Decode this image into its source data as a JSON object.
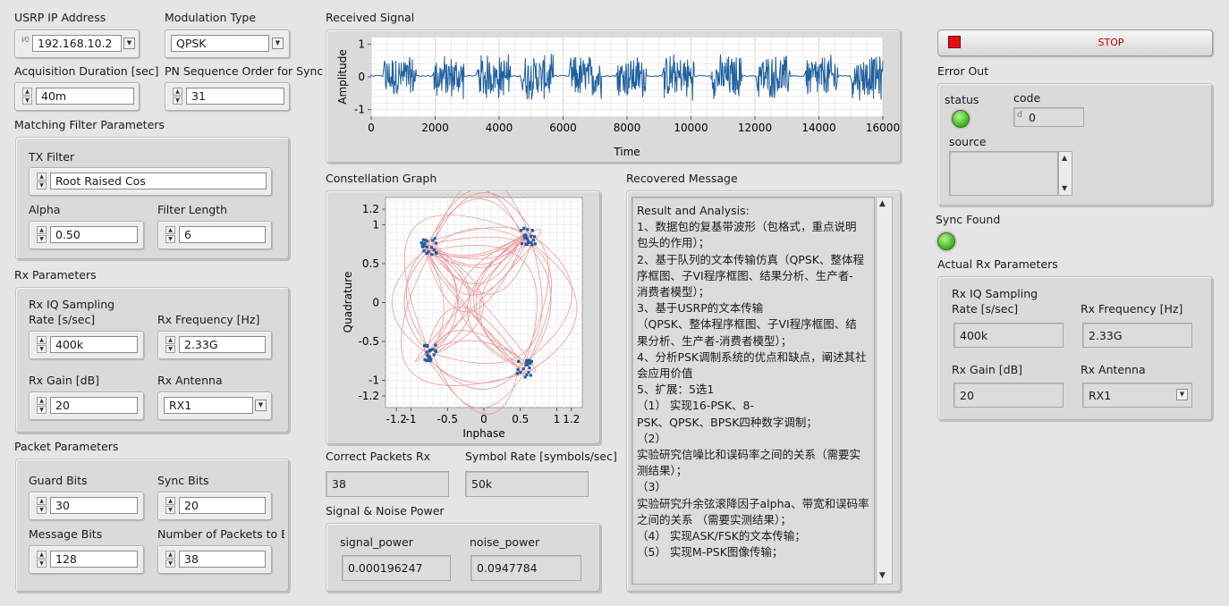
{
  "left": {
    "usrp_ip_label": "USRP IP Address",
    "usrp_ip_value": "192.168.10.2",
    "modulation_label": "Modulation Type",
    "modulation_value": "QPSK",
    "acq_duration_label": "Acquisition Duration [sec]",
    "acq_duration_value": "40m",
    "pn_order_label": "PN Sequence Order for Sync",
    "pn_order_value": "31",
    "matching_filter_title": "Matching Filter Parameters",
    "tx_filter_label": "TX Filter",
    "tx_filter_value": "Root Raised Cos",
    "alpha_label": "Alpha",
    "alpha_value": "0.50",
    "filter_length_label": "Filter Length",
    "filter_length_value": "6",
    "rx_params_title": "Rx Parameters",
    "rx_iq_label_1": "Rx IQ Sampling",
    "rx_iq_label_2": "Rate [s/sec]",
    "rx_iq_value": "400k",
    "rx_freq_label": "Rx Frequency [Hz]",
    "rx_freq_value": "2.33G",
    "rx_gain_label": "Rx Gain [dB]",
    "rx_gain_value": "20",
    "rx_antenna_label": "Rx Antenna",
    "rx_antenna_value": "RX1",
    "packet_params_title": "Packet Parameters",
    "guard_bits_label": "Guard Bits",
    "guard_bits_value": "30",
    "sync_bits_label": "Sync Bits",
    "sync_bits_value": "20",
    "message_bits_label": "Message Bits",
    "message_bits_value": "128",
    "num_packets_label": "Number of Packets to E",
    "num_packets_value": "38"
  },
  "received_signal": {
    "title": "Received Signal",
    "ylabel": "Amplitude",
    "xlabel": "Time",
    "xticks": [
      "0",
      "2000",
      "4000",
      "6000",
      "8000",
      "10000",
      "12000",
      "14000",
      "16000"
    ],
    "yticks": [
      "1",
      "0",
      "-1"
    ],
    "line_color": "#1f5fa0"
  },
  "constellation": {
    "title": "Constellation Graph",
    "ylabel": "Quadrature",
    "xlabel": "Inphase",
    "xticks": [
      "-1.2",
      "-1",
      "-0.5",
      "0",
      "0.5",
      "1",
      "1.2"
    ],
    "yticks": [
      "1.2",
      "1",
      "0.5",
      "0",
      "-0.5",
      "-1",
      "-1.2"
    ],
    "trace_color": "#e88a8a",
    "point_color": "#1f5fa0"
  },
  "stats": {
    "correct_packets_label": "Correct Packets Rx",
    "correct_packets_value": "38",
    "symbol_rate_label": "Symbol Rate [symbols/sec]",
    "symbol_rate_value": "50k",
    "signal_noise_title": "Signal & Noise Power",
    "signal_power_label": "signal_power",
    "signal_power_value": "0.000196247",
    "noise_power_label": "noise_power",
    "noise_power_value": "0.0947784"
  },
  "recovered": {
    "title": "Recovered Message",
    "lines": [
      "Result and Analysis:",
      "1、数据包的复基带波形（包格式，重点说明",
      "包头的作用）；",
      "2、基于队列的文本传输仿真（QPSK、整体程",
      "序框图、子VI程序框图、结果分析、生产者-",
      "消费者模型）；",
      "3、基于USRP的文本传输",
      "（QPSK、整体程序框图、子VI程序框图、结",
      "果分析、生产者-消费者模型）；",
      "4、分析PSK调制系统的优点和缺点，阐述其社",
      "会应用价值",
      "5、扩展：5选1",
      "      （1） 实现16-PSK、8-",
      "PSK、QPSK、BPSK四种数字调制；",
      "      （2）",
      "实验研究信噪比和误码率之间的关系（需要实",
      "测结果）；",
      "      （3）",
      "实验研究升余弦滚降因子alpha、带宽和误码率",
      "之间的关系 （需要实测结果）；",
      "      （4） 实现ASK/FSK的文本传输；",
      "      （5） 实现M-PSK图像传输；"
    ]
  },
  "right": {
    "stop_label": "STOP",
    "error_out_title": "Error Out",
    "status_label": "status",
    "code_label": "code",
    "code_value": "0",
    "source_label": "source",
    "sync_found_label": "Sync Found",
    "actual_rx_title": "Actual Rx Parameters",
    "rx_iq_label_1": "Rx IQ Sampling",
    "rx_iq_label_2": "Rate [s/sec]",
    "rx_iq_value": "400k",
    "rx_freq_label": "Rx Frequency [Hz]",
    "rx_freq_value": "2.33G",
    "rx_gain_label": "Rx Gain [dB]",
    "rx_gain_value": "20",
    "rx_antenna_label": "Rx Antenna",
    "rx_antenna_value": "RX1"
  }
}
